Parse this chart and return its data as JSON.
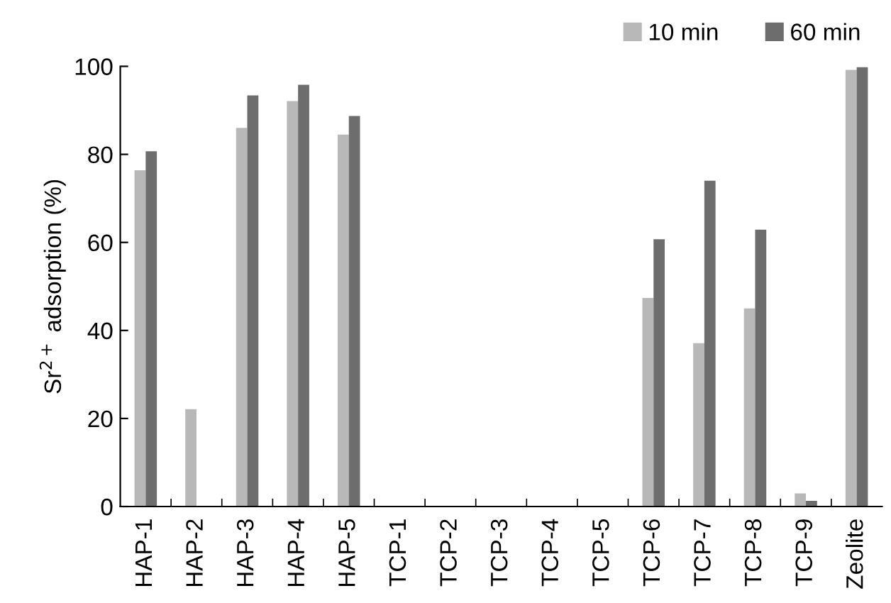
{
  "chart_data": {
    "type": "bar",
    "ylabel": "Sr$^{2+}$ adsorption (%)",
    "categories": [
      "HAP-1",
      "HAP-2",
      "HAP-3",
      "HAP-4",
      "HAP-5",
      "TCP-1",
      "TCP-2",
      "TCP-3",
      "TCP-4",
      "TCP-5",
      "TCP-6",
      "TCP-7",
      "TCP-8",
      "TCP-9",
      "Zeolite"
    ],
    "series": [
      {
        "name": "10 min",
        "color": "#b8b8b8",
        "values": [
          76.4,
          22.1,
          86,
          92.1,
          84.5,
          0,
          0,
          0,
          0,
          0,
          47.4,
          37.1,
          45,
          3,
          99.2
        ]
      },
      {
        "name": "60 min",
        "color": "#6d6d6d",
        "values": [
          80.7,
          0,
          93.4,
          95.8,
          88.7,
          0,
          0,
          0,
          0,
          0,
          60.7,
          74,
          62.9,
          1.3,
          99.8
        ]
      }
    ],
    "ylim": [
      0,
      100
    ],
    "yticks": [
      0,
      20,
      40,
      60,
      80,
      100
    ],
    "grid": false,
    "legend": "top right"
  }
}
